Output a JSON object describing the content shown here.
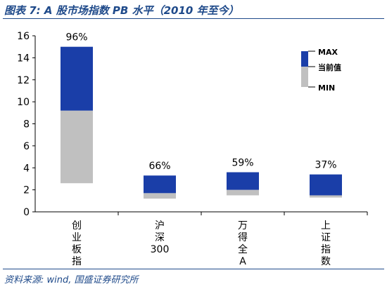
{
  "header": {
    "title": "图表 7: A 股市场指数 PB 水平（2010 年至今）"
  },
  "footer": {
    "source": "资料来源: wind, 国盛证券研究所"
  },
  "colors": {
    "upper": "#1a3ea8",
    "lower": "#c0c0c0",
    "rule": "#1f4a8a"
  },
  "chart_data": {
    "type": "bar",
    "subtype": "floating range bars (MIN / current value / MAX)",
    "categories": [
      "创业板指",
      "沪深300",
      "万得全A",
      "上证指数"
    ],
    "series": [
      {
        "name": "MIN",
        "values": [
          2.6,
          1.2,
          1.5,
          1.3
        ]
      },
      {
        "name": "当前值",
        "values": [
          9.2,
          1.7,
          2.0,
          1.5
        ]
      },
      {
        "name": "MAX",
        "values": [
          15.0,
          3.3,
          3.6,
          3.4
        ]
      }
    ],
    "data_labels": [
      "96%",
      "66%",
      "59%",
      "37%"
    ],
    "ylim": [
      0,
      16
    ],
    "yticks": [
      "0",
      "2",
      "4",
      "6",
      "8",
      "10",
      "12",
      "14",
      "16"
    ],
    "legend": {
      "position": "top-right",
      "max": "MAX",
      "current": "当前值",
      "min": "MIN"
    },
    "grid": false
  }
}
